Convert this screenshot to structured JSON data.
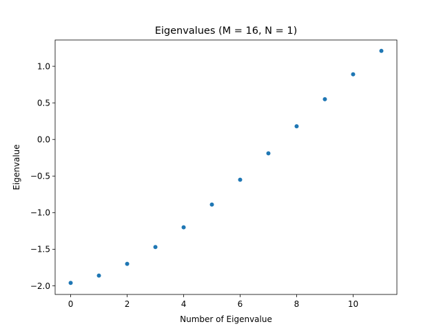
{
  "chart_data": {
    "type": "scatter",
    "title": "Eigenvalues (M = 16, N = 1)",
    "xlabel": "Number of Eigenvalue",
    "ylabel": "Eigenvalue",
    "x": [
      0,
      1,
      2,
      3,
      4,
      5,
      6,
      7,
      8,
      9,
      10,
      11
    ],
    "series": [
      {
        "values": [
          -1.96,
          -1.86,
          -1.7,
          -1.47,
          -1.2,
          -0.89,
          -0.55,
          -0.19,
          0.18,
          0.55,
          0.89,
          1.21
        ],
        "color": "#1f77b4"
      }
    ],
    "xticks": [
      0,
      2,
      4,
      6,
      8,
      10
    ],
    "xtick_labels": [
      "0",
      "2",
      "4",
      "6",
      "8",
      "10"
    ],
    "yticks": [
      -2.0,
      -1.5,
      -1.0,
      -0.5,
      0.0,
      0.5,
      1.0
    ],
    "ytick_labels": [
      "−2.0",
      "−1.5",
      "−1.0",
      "−0.5",
      "0.0",
      "0.5",
      "1.0"
    ],
    "xlim": [
      -0.55,
      11.55
    ],
    "ylim": [
      -2.118,
      1.359
    ],
    "grid": false,
    "legend": "none"
  }
}
